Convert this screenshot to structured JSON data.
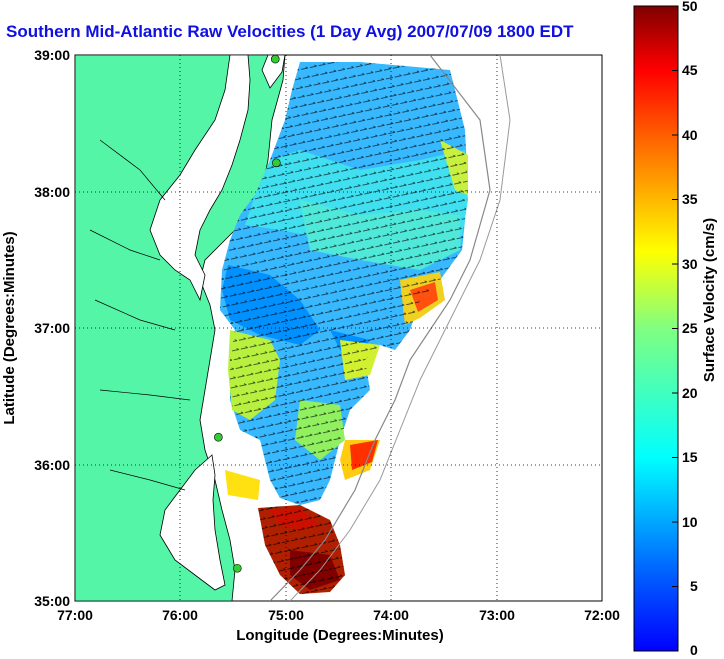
{
  "title": "Southern Mid-Atlantic Raw Velocities (1 Day Avg) 2007/07/09 1800 EDT",
  "axes": {
    "xlabel": "Longitude (Degrees:Minutes)",
    "ylabel": "Latitude (Degrees:Minutes)",
    "xticks": [
      "77:00",
      "76:00",
      "75:00",
      "74:00",
      "73:00",
      "72:00"
    ],
    "yticks": [
      "39:00",
      "38:00",
      "37:00",
      "36:00",
      "35:00"
    ],
    "xlim": [
      -77,
      -72
    ],
    "ylim": [
      35,
      39
    ],
    "grid": "dotted"
  },
  "colorbar": {
    "label": "Surface Velocity (cm/s)",
    "ticks": [
      "50",
      "45",
      "40",
      "35",
      "30",
      "25",
      "20",
      "15",
      "10",
      "5",
      "0"
    ],
    "range": [
      0,
      50
    ],
    "colormap": "jet"
  },
  "colors": {
    "land": "#55f5a8",
    "title": "#1010e0",
    "station": "#33cc33"
  },
  "stations": [
    {
      "lon": -75.1,
      "lat": 38.97
    },
    {
      "lon": -75.09,
      "lat": 38.21
    },
    {
      "lon": -75.64,
      "lat": 36.2
    },
    {
      "lon": -75.46,
      "lat": 35.24
    }
  ]
}
